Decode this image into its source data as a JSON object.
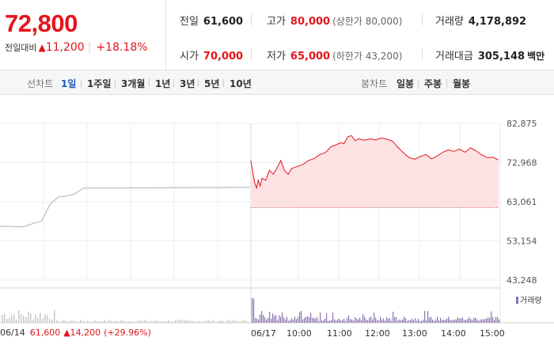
{
  "quote": {
    "price": "72,800",
    "change_label": "전일대비",
    "change_arrow": "▲",
    "change_amount": "11,200",
    "change_pct": "+18.18%"
  },
  "info": {
    "prev_close_label": "전일",
    "prev_close": "61,600",
    "high_label": "고가",
    "high": "80,000",
    "upper_limit": "(상한가 80,000)",
    "volume_label": "거래량",
    "volume": "4,178,892",
    "open_label": "시가",
    "open": "70,000",
    "low_label": "저가",
    "low": "65,000",
    "lower_limit": "(하한가 43,200)",
    "trade_value_label": "거래대금",
    "trade_value": "305,148",
    "trade_value_unit": "백만"
  },
  "toolbar": {
    "line_chart_label": "선차트",
    "periods": [
      "1일",
      "1주일",
      "3개월",
      "1년",
      "3년",
      "5년",
      "10년"
    ],
    "active_period": "1일",
    "candle_chart_label": "봉차트",
    "candles": [
      "일봉",
      "주봉",
      "월봉"
    ]
  },
  "footer": {
    "date": "06/14",
    "price": "61,600",
    "arrow": "▲",
    "change": "14,200",
    "rate": "(+29.96%)"
  },
  "volume_legend": "거래량",
  "colors": {
    "up": "#e4151b",
    "line": "#e4151b",
    "area": "#fde2e3",
    "prev_line": "#bbbbbb",
    "volume": "#8a74b0",
    "volume_prev": "#c8c8c8"
  },
  "chart_data": {
    "type": "line",
    "y_ticks": [
      "82,875",
      "72,968",
      "63,061",
      "53,154",
      "43,248"
    ],
    "ylim": [
      43248,
      82875
    ],
    "x_ticks": [
      "06/17",
      "10:00",
      "11:00",
      "12:00",
      "13:00",
      "14:00",
      "15:00"
    ],
    "reference_line": 61600,
    "series": [
      {
        "points": [
          [
            0,
            73500
          ],
          [
            1,
            70500
          ],
          [
            2,
            68000
          ],
          [
            3,
            66500
          ],
          [
            4,
            68500
          ],
          [
            5,
            67000
          ],
          [
            6,
            69000
          ],
          [
            8,
            68500
          ],
          [
            10,
            71000
          ],
          [
            12,
            70000
          ],
          [
            14,
            71500
          ],
          [
            16,
            73500
          ],
          [
            18,
            71000
          ],
          [
            20,
            70000
          ],
          [
            22,
            71500
          ],
          [
            25,
            72000
          ],
          [
            28,
            72500
          ],
          [
            31,
            73500
          ],
          [
            34,
            74000
          ],
          [
            37,
            75000
          ],
          [
            40,
            75500
          ],
          [
            43,
            77000
          ],
          [
            46,
            77500
          ],
          [
            48,
            78000
          ],
          [
            50,
            77800
          ],
          [
            52,
            79500
          ],
          [
            54,
            79800
          ],
          [
            56,
            78500
          ],
          [
            58,
            79000
          ],
          [
            61,
            78600
          ],
          [
            64,
            79000
          ],
          [
            67,
            78700
          ],
          [
            70,
            79200
          ],
          [
            73,
            78900
          ],
          [
            76,
            78400
          ],
          [
            79,
            76800
          ],
          [
            82,
            75400
          ],
          [
            85,
            74200
          ],
          [
            88,
            73800
          ],
          [
            91,
            74500
          ],
          [
            94,
            75000
          ],
          [
            97,
            73900
          ],
          [
            100,
            74600
          ],
          [
            103,
            75600
          ],
          [
            106,
            76200
          ],
          [
            109,
            75800
          ],
          [
            112,
            76400
          ],
          [
            115,
            75600
          ],
          [
            118,
            76700
          ],
          [
            121,
            75900
          ],
          [
            124,
            74900
          ],
          [
            127,
            74200
          ],
          [
            130,
            74300
          ],
          [
            133,
            73600
          ]
        ]
      }
    ],
    "prev_day_points": [
      [
        0,
        56800
      ],
      [
        1,
        56900
      ],
      [
        2,
        56700
      ],
      [
        3,
        56800
      ],
      [
        4,
        57600
      ],
      [
        5,
        58200
      ],
      [
        6,
        62400
      ],
      [
        7,
        64300
      ],
      [
        8,
        64500
      ],
      [
        9,
        65100
      ],
      [
        10,
        66500
      ],
      [
        30,
        66700
      ]
    ]
  }
}
